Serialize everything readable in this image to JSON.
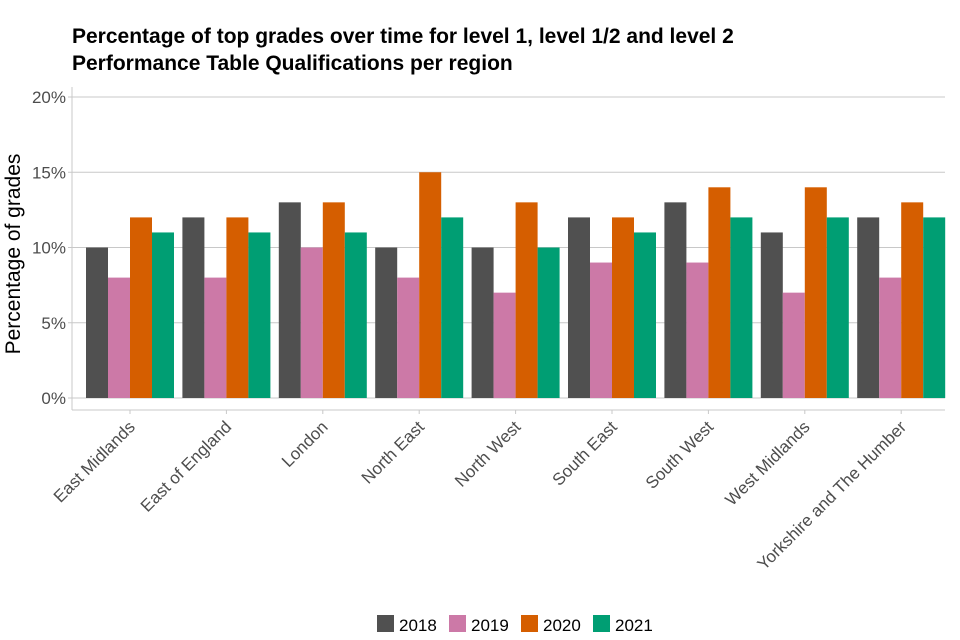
{
  "chart_data": {
    "type": "bar",
    "title": "Percentage of top grades over time for level 1, level 1/2 and level 2 Performance Table Qualifications per region",
    "title_lines": [
      "Percentage of top grades over time for level 1, level 1/2 and level 2",
      "Performance Table Qualifications per region"
    ],
    "xlabel": "",
    "ylabel": "Percentage of grades",
    "ylim": [
      0,
      20
    ],
    "yticks": [
      0,
      5,
      10,
      15,
      20
    ],
    "ytick_labels": [
      "0%",
      "5%",
      "10%",
      "15%",
      "20%"
    ],
    "grid": true,
    "legend_position": "bottom",
    "categories": [
      "East Midlands",
      "East of England",
      "London",
      "North East",
      "North West",
      "South East",
      "South West",
      "West Midlands",
      "Yorkshire and The Humber"
    ],
    "series": [
      {
        "name": "2018",
        "color": "#505050",
        "values": [
          10,
          12,
          13,
          10,
          10,
          12,
          13,
          11,
          12
        ]
      },
      {
        "name": "2019",
        "color": "#cc79a7",
        "values": [
          8,
          8,
          10,
          8,
          7,
          9,
          9,
          7,
          8
        ]
      },
      {
        "name": "2020",
        "color": "#d55e00",
        "values": [
          12,
          12,
          13,
          15,
          13,
          12,
          14,
          14,
          13
        ]
      },
      {
        "name": "2021",
        "color": "#009e73",
        "values": [
          11,
          11,
          11,
          12,
          10,
          11,
          12,
          12,
          12
        ]
      }
    ]
  }
}
